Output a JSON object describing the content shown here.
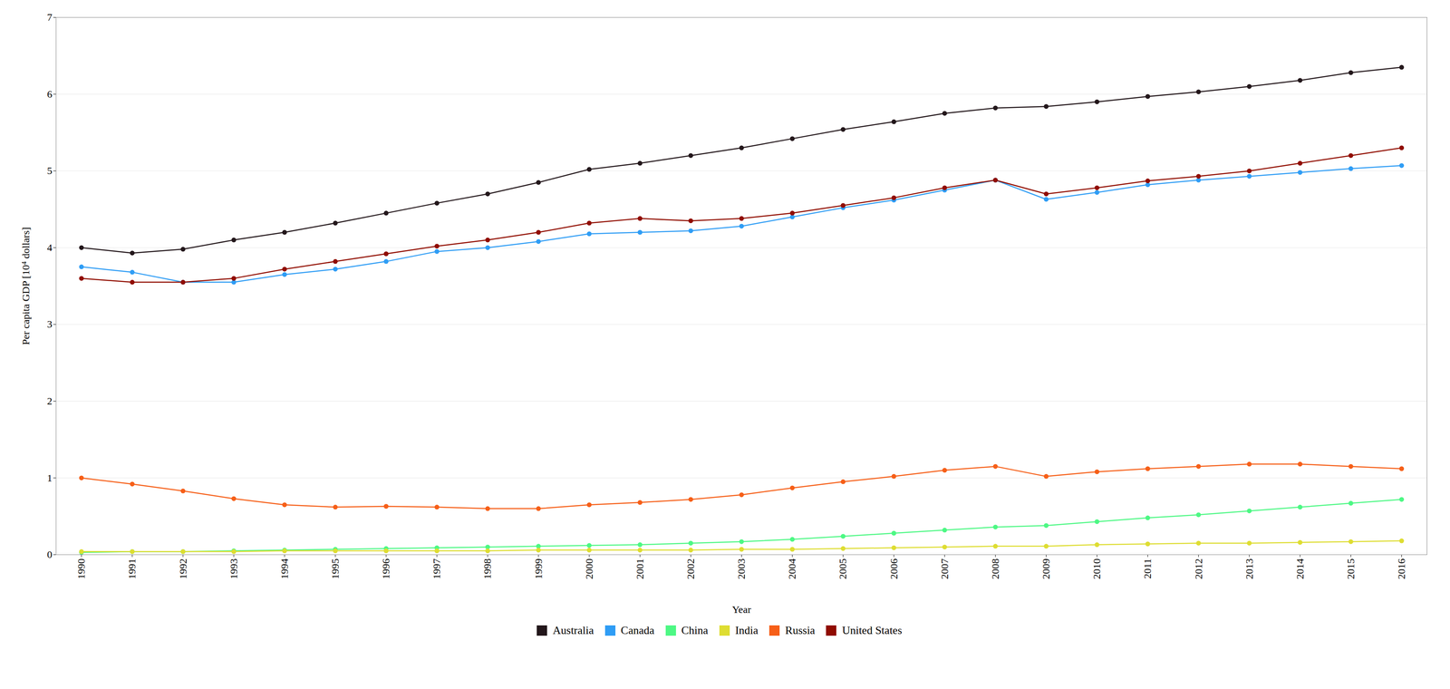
{
  "chart_data": {
    "type": "line",
    "xlabel": "Year",
    "ylabel": "Per capita GDP [10⁴ dollars]",
    "x": [
      1990,
      1991,
      1992,
      1993,
      1994,
      1995,
      1996,
      1997,
      1998,
      1999,
      2000,
      2001,
      2002,
      2003,
      2004,
      2005,
      2006,
      2007,
      2008,
      2009,
      2010,
      2011,
      2012,
      2013,
      2014,
      2015,
      2016
    ],
    "series": [
      {
        "name": "Australia",
        "marker": "circle",
        "line_style": "solid",
        "values": [
          4.0,
          3.93,
          3.98,
          4.1,
          4.2,
          4.32,
          4.45,
          4.58,
          4.7,
          4.85,
          5.02,
          5.1,
          5.2,
          5.3,
          5.42,
          5.54,
          5.64,
          5.75,
          5.82,
          5.84,
          5.9,
          5.97,
          6.03,
          6.1,
          6.18,
          6.28,
          6.35
        ]
      },
      {
        "name": "Canada",
        "marker": "circle",
        "line_style": "solid",
        "values": [
          3.75,
          3.68,
          3.55,
          3.55,
          3.65,
          3.72,
          3.82,
          3.95,
          4.0,
          4.08,
          4.18,
          4.2,
          4.22,
          4.28,
          4.4,
          4.52,
          4.62,
          4.75,
          4.88,
          4.63,
          4.72,
          4.82,
          4.88,
          4.93,
          4.98,
          5.03,
          5.07
        ]
      },
      {
        "name": "China",
        "marker": "circle",
        "line_style": "solid",
        "values": [
          0.03,
          0.04,
          0.04,
          0.05,
          0.06,
          0.07,
          0.08,
          0.09,
          0.1,
          0.11,
          0.12,
          0.13,
          0.15,
          0.17,
          0.2,
          0.24,
          0.28,
          0.32,
          0.36,
          0.38,
          0.43,
          0.48,
          0.52,
          0.57,
          0.62,
          0.67,
          0.72
        ]
      },
      {
        "name": "India",
        "marker": "circle",
        "line_style": "solid",
        "values": [
          0.04,
          0.04,
          0.04,
          0.04,
          0.05,
          0.05,
          0.05,
          0.05,
          0.05,
          0.06,
          0.06,
          0.06,
          0.06,
          0.07,
          0.07,
          0.08,
          0.09,
          0.1,
          0.11,
          0.11,
          0.13,
          0.14,
          0.15,
          0.15,
          0.16,
          0.17,
          0.18
        ]
      },
      {
        "name": "Russia",
        "marker": "circle",
        "line_style": "solid",
        "values": [
          1.0,
          0.92,
          0.83,
          0.73,
          0.65,
          0.62,
          0.63,
          0.62,
          0.6,
          0.6,
          0.65,
          0.68,
          0.72,
          0.78,
          0.87,
          0.95,
          1.02,
          1.1,
          1.15,
          1.02,
          1.08,
          1.12,
          1.15,
          1.18,
          1.18,
          1.15,
          1.12
        ]
      },
      {
        "name": "United States",
        "marker": "circle",
        "line_style": "solid",
        "values": [
          3.6,
          3.55,
          3.55,
          3.6,
          3.72,
          3.82,
          3.92,
          4.02,
          4.1,
          4.2,
          4.32,
          4.38,
          4.35,
          4.38,
          4.45,
          4.55,
          4.65,
          4.78,
          4.88,
          4.7,
          4.78,
          4.87,
          4.93,
          5.0,
          5.1,
          5.2,
          5.3
        ]
      }
    ],
    "xlim": [
      1989.5,
      2016.5
    ],
    "xticks": [
      1990,
      1991,
      1992,
      1993,
      1994,
      1995,
      1996,
      1997,
      1998,
      1999,
      2000,
      2001,
      2002,
      2003,
      2004,
      2005,
      2006,
      2007,
      2008,
      2009,
      2010,
      2011,
      2012,
      2013,
      2014,
      2015,
      2016
    ],
    "ylim": [
      0,
      7
    ],
    "yticks": [
      0,
      1,
      2,
      3,
      4,
      5,
      6,
      7
    ],
    "grid": true,
    "legend": "bottom"
  }
}
